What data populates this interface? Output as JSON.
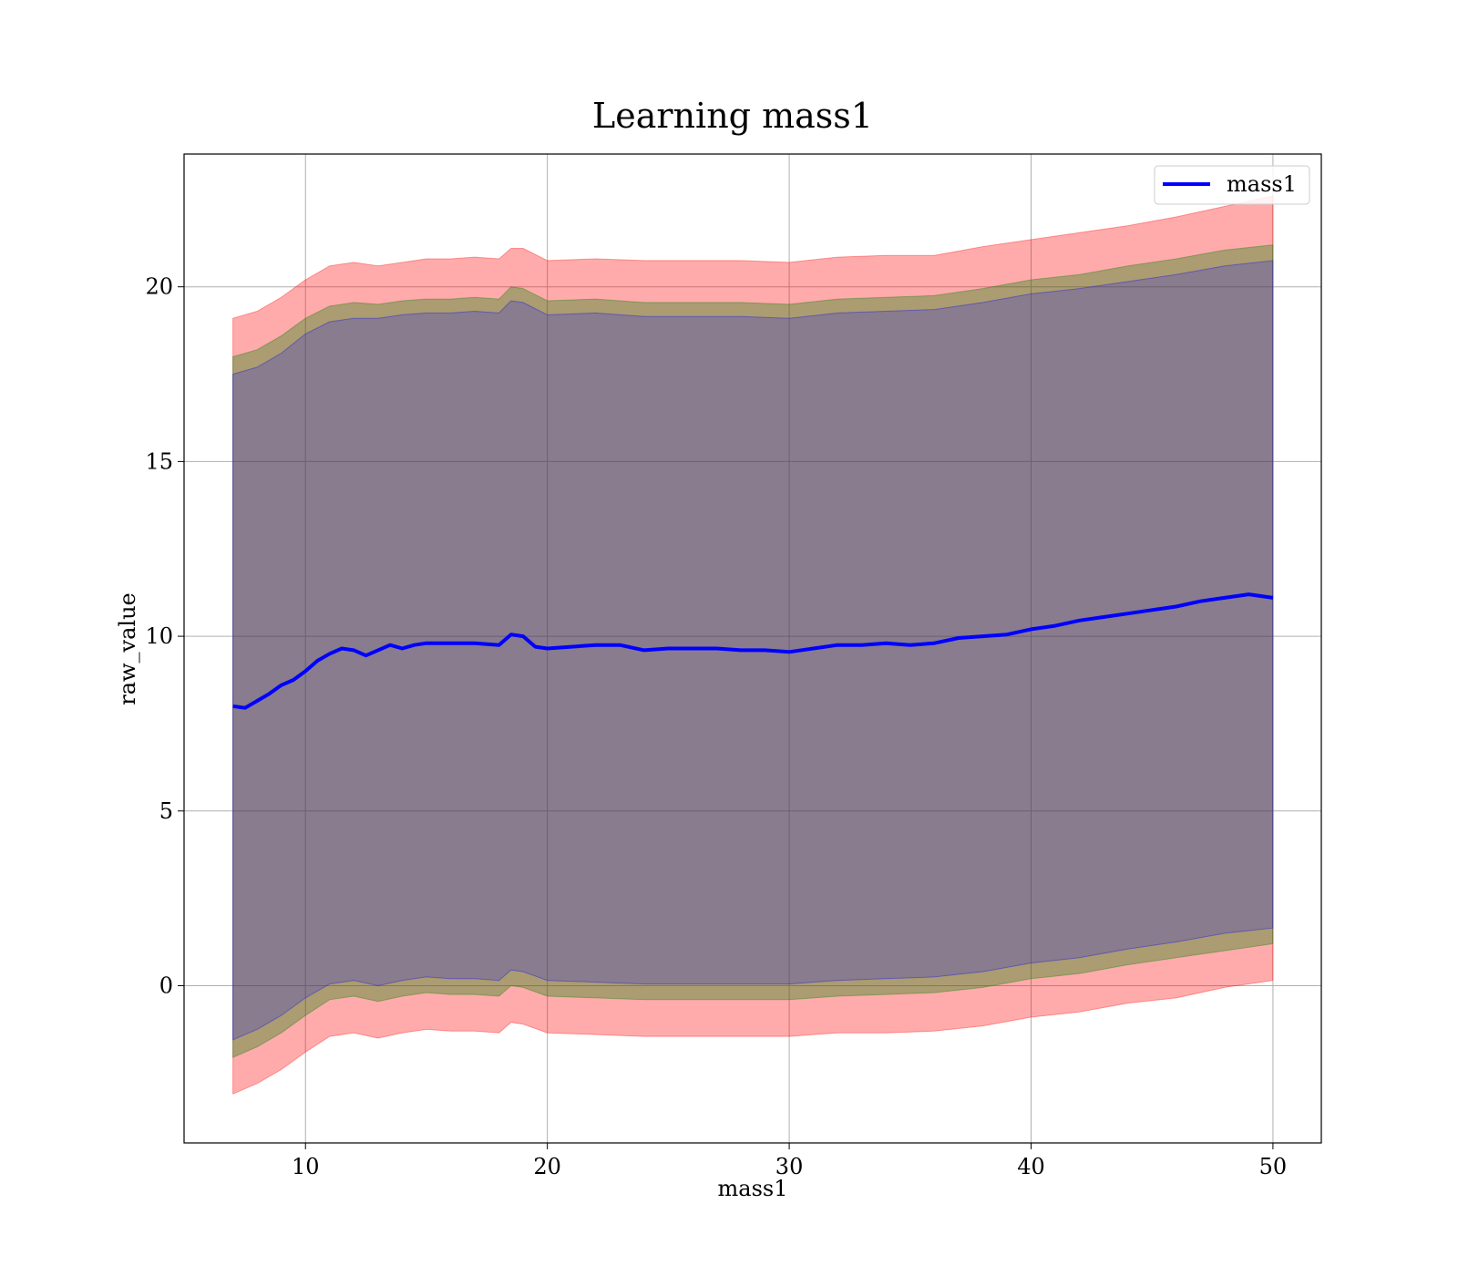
{
  "chart_data": {
    "type": "line",
    "title": "Learning mass1",
    "xlabel": "mass1",
    "ylabel": "raw_value",
    "xlim": [
      4.98,
      52.0
    ],
    "ylim": [
      -4.5,
      23.8
    ],
    "xticks": [
      10,
      20,
      30,
      40,
      50
    ],
    "yticks": [
      0,
      5,
      10,
      15,
      20
    ],
    "grid": true,
    "legend": {
      "position": "top-right",
      "entries": [
        "mass1"
      ]
    },
    "series": [
      {
        "name": "mass1",
        "color": "#0000ff",
        "x": [
          7,
          7.5,
          8,
          8.5,
          9,
          9.5,
          10,
          10.5,
          11,
          11.5,
          12,
          12.5,
          13,
          13.5,
          14,
          14.5,
          15,
          16,
          17,
          18,
          18.5,
          19,
          19.5,
          20,
          21,
          22,
          23,
          24,
          25,
          26,
          27,
          28,
          29,
          30,
          31,
          32,
          33,
          34,
          35,
          36,
          37,
          38,
          39,
          40,
          41,
          42,
          43,
          44,
          45,
          46,
          47,
          48,
          49,
          50
        ],
        "y": [
          8.0,
          7.95,
          8.15,
          8.35,
          8.6,
          8.75,
          9.0,
          9.3,
          9.5,
          9.65,
          9.6,
          9.45,
          9.6,
          9.75,
          9.65,
          9.75,
          9.8,
          9.8,
          9.8,
          9.75,
          10.05,
          10.0,
          9.7,
          9.65,
          9.7,
          9.75,
          9.75,
          9.6,
          9.65,
          9.65,
          9.65,
          9.6,
          9.6,
          9.55,
          9.65,
          9.75,
          9.75,
          9.8,
          9.75,
          9.8,
          9.95,
          10.0,
          10.05,
          10.2,
          10.3,
          10.45,
          10.55,
          10.65,
          10.75,
          10.85,
          11.0,
          11.1,
          11.2,
          11.1
        ]
      }
    ],
    "bands": [
      {
        "color": "#ff0000",
        "opacity": 0.33,
        "x": [
          7,
          8,
          9,
          10,
          11,
          12,
          13,
          14,
          15,
          16,
          17,
          18,
          18.5,
          19,
          20,
          22,
          24,
          26,
          28,
          30,
          32,
          34,
          36,
          38,
          40,
          42,
          44,
          46,
          48,
          50
        ],
        "upper": [
          19.1,
          19.3,
          19.7,
          20.2,
          20.6,
          20.7,
          20.6,
          20.7,
          20.8,
          20.8,
          20.85,
          20.8,
          21.1,
          21.1,
          20.75,
          20.8,
          20.75,
          20.75,
          20.75,
          20.7,
          20.85,
          20.9,
          20.9,
          21.15,
          21.35,
          21.55,
          21.75,
          22.0,
          22.3,
          22.6
        ],
        "lower": [
          -3.1,
          -2.8,
          -2.4,
          -1.9,
          -1.45,
          -1.35,
          -1.5,
          -1.35,
          -1.25,
          -1.3,
          -1.3,
          -1.35,
          -1.05,
          -1.1,
          -1.35,
          -1.4,
          -1.45,
          -1.45,
          -1.45,
          -1.45,
          -1.35,
          -1.35,
          -1.3,
          -1.15,
          -0.9,
          -0.75,
          -0.5,
          -0.35,
          -0.05,
          0.15
        ]
      },
      {
        "color": "#008000",
        "opacity": 0.33,
        "x": [
          7,
          8,
          9,
          10,
          11,
          12,
          13,
          14,
          15,
          16,
          17,
          18,
          18.5,
          19,
          20,
          22,
          24,
          26,
          28,
          30,
          32,
          34,
          36,
          38,
          40,
          42,
          44,
          46,
          48,
          50
        ],
        "upper": [
          18.0,
          18.2,
          18.6,
          19.1,
          19.45,
          19.55,
          19.5,
          19.6,
          19.65,
          19.65,
          19.7,
          19.65,
          20.0,
          19.95,
          19.6,
          19.65,
          19.55,
          19.55,
          19.55,
          19.5,
          19.65,
          19.7,
          19.75,
          19.95,
          20.2,
          20.35,
          20.6,
          20.8,
          21.05,
          21.2
        ],
        "lower": [
          -2.05,
          -1.75,
          -1.35,
          -0.85,
          -0.4,
          -0.3,
          -0.45,
          -0.3,
          -0.2,
          -0.25,
          -0.25,
          -0.3,
          0.0,
          -0.05,
          -0.3,
          -0.35,
          -0.4,
          -0.4,
          -0.4,
          -0.4,
          -0.3,
          -0.25,
          -0.2,
          -0.05,
          0.2,
          0.35,
          0.6,
          0.8,
          1.0,
          1.2
        ]
      },
      {
        "color": "#0000ff",
        "opacity": 0.2,
        "x": [
          7,
          8,
          9,
          10,
          11,
          12,
          13,
          14,
          15,
          16,
          17,
          18,
          18.5,
          19,
          20,
          22,
          24,
          26,
          28,
          30,
          32,
          34,
          36,
          38,
          40,
          42,
          44,
          46,
          48,
          50
        ],
        "upper": [
          17.5,
          17.7,
          18.1,
          18.65,
          19.0,
          19.1,
          19.1,
          19.2,
          19.25,
          19.25,
          19.3,
          19.25,
          19.6,
          19.55,
          19.2,
          19.25,
          19.15,
          19.15,
          19.15,
          19.1,
          19.25,
          19.3,
          19.35,
          19.55,
          19.8,
          19.95,
          20.15,
          20.35,
          20.6,
          20.75
        ],
        "lower": [
          -1.55,
          -1.25,
          -0.85,
          -0.35,
          0.05,
          0.15,
          0.0,
          0.15,
          0.25,
          0.2,
          0.2,
          0.15,
          0.45,
          0.4,
          0.15,
          0.1,
          0.05,
          0.05,
          0.05,
          0.05,
          0.15,
          0.2,
          0.25,
          0.4,
          0.65,
          0.8,
          1.05,
          1.25,
          1.5,
          1.65
        ]
      }
    ]
  }
}
